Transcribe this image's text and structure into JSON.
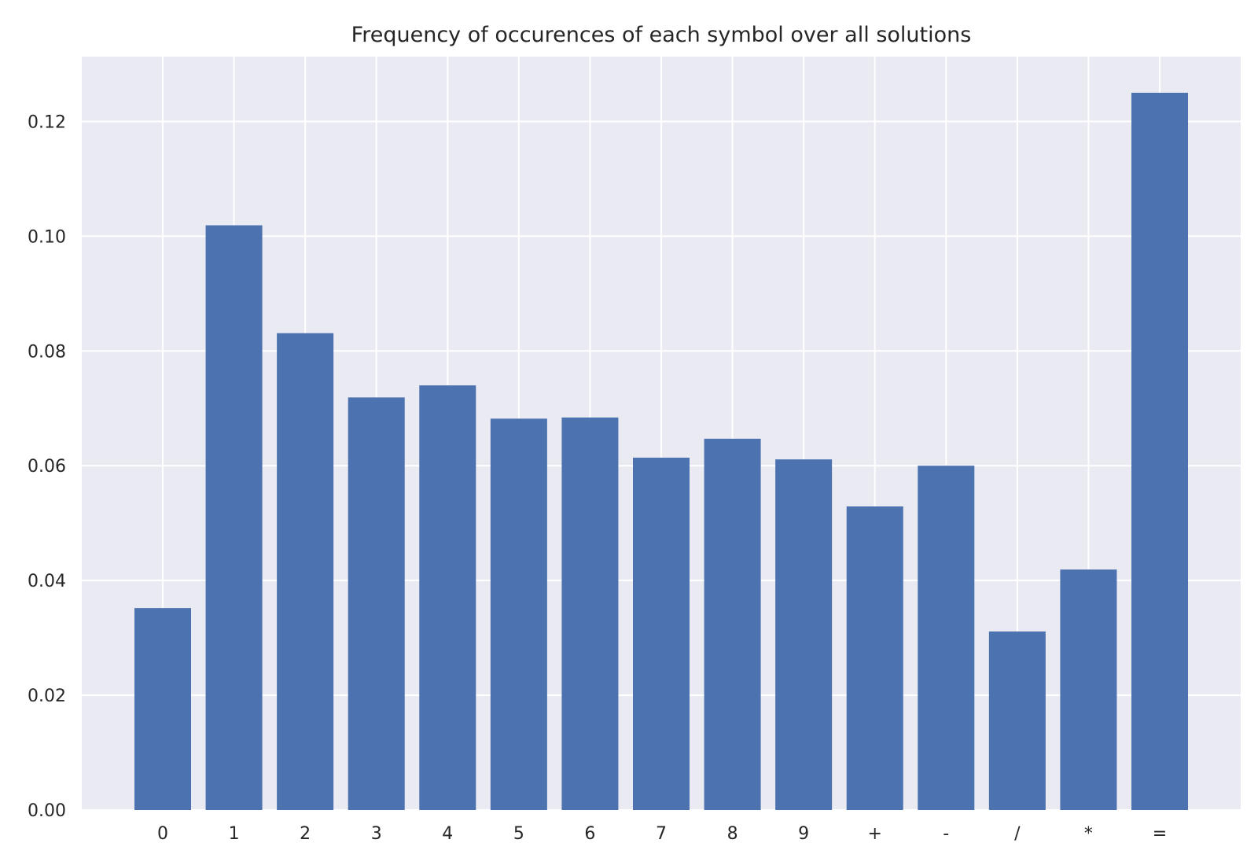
{
  "chart_data": {
    "type": "bar",
    "title": "Frequency of occurences of each symbol over all solutions",
    "xlabel": "",
    "ylabel": "",
    "categories": [
      "0",
      "1",
      "2",
      "3",
      "4",
      "5",
      "6",
      "7",
      "8",
      "9",
      "+",
      "-",
      "/",
      "*",
      "="
    ],
    "values": [
      0.0352,
      0.1019,
      0.0831,
      0.0719,
      0.074,
      0.0682,
      0.0684,
      0.0614,
      0.0647,
      0.0611,
      0.0529,
      0.06,
      0.0311,
      0.0419,
      0.125
    ],
    "ylim": [
      0,
      0.1313
    ],
    "yticks": [
      "0.00",
      "0.02",
      "0.04",
      "0.06",
      "0.08",
      "0.10",
      "0.12"
    ],
    "grid": true,
    "colors": {
      "bar": "#4c72b0",
      "plot_background": "#eaeaf2",
      "grid": "#ffffff",
      "text": "#262626"
    }
  }
}
